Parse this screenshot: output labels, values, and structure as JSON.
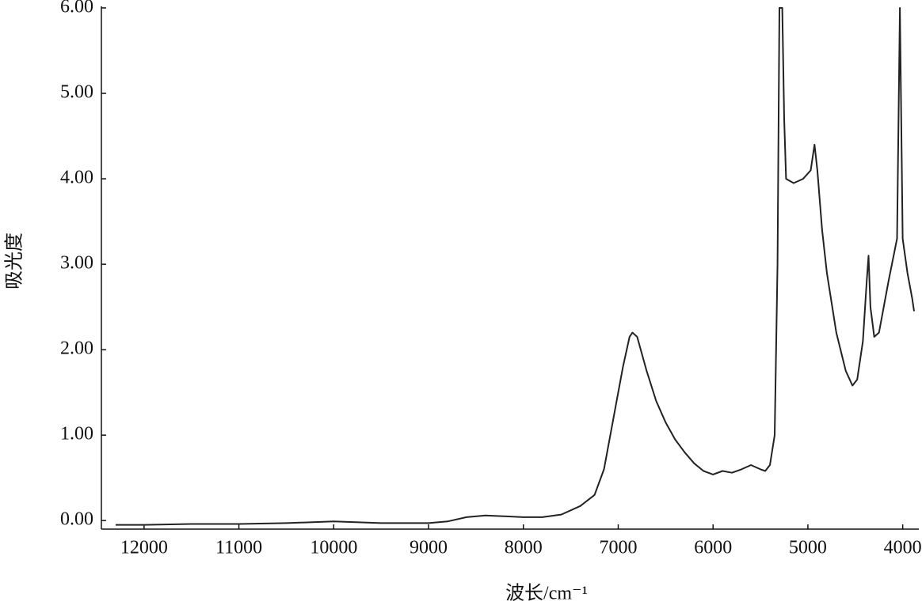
{
  "chart_data": {
    "type": "line",
    "xlabel": "波长/cm⁻¹",
    "ylabel": "吸光度",
    "x": [
      12300,
      12000,
      11500,
      11000,
      10500,
      10000,
      9500,
      9000,
      8800,
      8600,
      8400,
      8200,
      8000,
      7800,
      7600,
      7400,
      7250,
      7150,
      7050,
      6950,
      6880,
      6850,
      6800,
      6700,
      6600,
      6500,
      6400,
      6300,
      6200,
      6100,
      6000,
      5900,
      5800,
      5700,
      5600,
      5500,
      5450,
      5400,
      5350,
      5320,
      5300,
      5270,
      5250,
      5230,
      5150,
      5050,
      4970,
      4930,
      4900,
      4850,
      4800,
      4700,
      4600,
      4530,
      4480,
      4420,
      4380,
      4360,
      4340,
      4300,
      4250,
      4150,
      4060,
      4030,
      4000,
      3950,
      3900,
      3880
    ],
    "series": [
      {
        "color": "#222222",
        "values": [
          -0.05,
          -0.05,
          -0.04,
          -0.04,
          -0.03,
          -0.01,
          -0.03,
          -0.03,
          -0.01,
          0.04,
          0.06,
          0.05,
          0.04,
          0.04,
          0.07,
          0.17,
          0.3,
          0.6,
          1.2,
          1.8,
          2.15,
          2.2,
          2.15,
          1.75,
          1.4,
          1.15,
          0.95,
          0.8,
          0.67,
          0.58,
          0.54,
          0.58,
          0.56,
          0.6,
          0.65,
          0.6,
          0.58,
          0.65,
          1.0,
          3.0,
          6.0,
          6.0,
          4.7,
          4.0,
          3.95,
          4.0,
          4.1,
          4.4,
          4.1,
          3.4,
          2.9,
          2.2,
          1.75,
          1.58,
          1.65,
          2.1,
          2.8,
          3.1,
          2.5,
          2.15,
          2.2,
          2.8,
          3.3,
          6.0,
          3.3,
          2.9,
          2.6,
          2.45
        ]
      }
    ],
    "xlim": [
      12450,
      3830
    ],
    "xticks": [
      12000,
      11000,
      10000,
      9000,
      8000,
      7000,
      6000,
      5000,
      4000
    ],
    "ylim": [
      -0.1,
      6.0
    ],
    "yticks": [
      {
        "value": 0,
        "label": "0.00"
      },
      {
        "value": 1,
        "label": "1.00"
      },
      {
        "value": 2,
        "label": "2.00"
      },
      {
        "value": 3,
        "label": "3.00"
      },
      {
        "value": 4,
        "label": "4.00"
      },
      {
        "value": 5,
        "label": "5.00"
      },
      {
        "value": 6,
        "label": "6.00"
      }
    ]
  }
}
